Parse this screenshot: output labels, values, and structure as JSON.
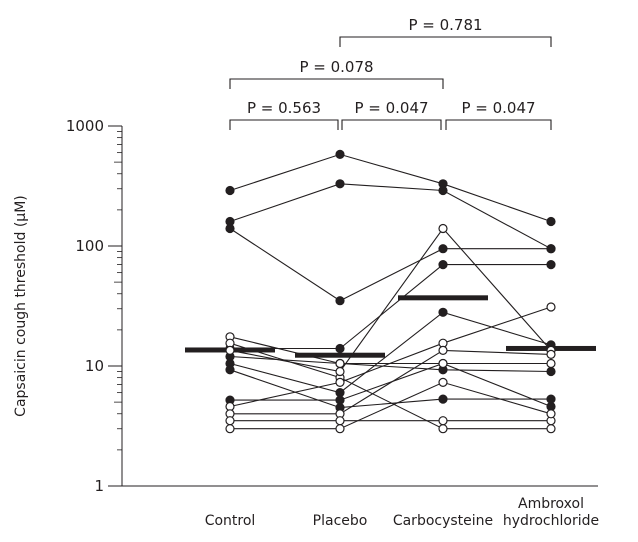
{
  "chart_data": {
    "type": "scatter",
    "title": "",
    "ylabel": "Capsaicin cough threshold (μM)",
    "xlabel": "",
    "yscale": "log",
    "ylim": [
      1,
      1000
    ],
    "yticks": [
      "1",
      "10",
      "100",
      "1000"
    ],
    "categories": [
      "Control",
      "Placebo",
      "Carbocysteine",
      "Ambroxol hydrochloride"
    ],
    "category_lines": [
      [
        "Control"
      ],
      [
        "Placebo"
      ],
      [
        "Carbocysteine"
      ],
      [
        "Ambroxol",
        "hydrochloride"
      ]
    ],
    "medians": [
      13.6,
      12.3,
      37,
      14
    ],
    "comparisons": [
      {
        "label": "P = 0.563",
        "from": "Control",
        "to": "Placebo"
      },
      {
        "label": "P = 0.047",
        "from": "Placebo",
        "to": "Carbocysteine"
      },
      {
        "label": "P = 0.047",
        "from": "Carbocysteine",
        "to": "Ambroxol hydrochloride"
      },
      {
        "label": "P = 0.078",
        "from": "Control",
        "to": "Carbocysteine"
      },
      {
        "label": "P = 0.781",
        "from": "Placebo",
        "to": "Ambroxol hydrochloride"
      }
    ],
    "closed_series": [
      {
        "values": [
          290,
          580,
          330,
          160
        ]
      },
      {
        "values": [
          160,
          330,
          290,
          95
        ]
      },
      {
        "values": [
          140,
          35,
          95,
          95
        ]
      },
      {
        "values": [
          14,
          14,
          70,
          70
        ]
      },
      {
        "values": [
          12,
          10.5,
          9.3,
          9
        ]
      },
      {
        "values": [
          10.5,
          6,
          28,
          15
        ]
      },
      {
        "values": [
          9.3,
          4.5,
          5.3,
          5.3
        ]
      },
      {
        "values": [
          5.2,
          5.2,
          10.5,
          4.6
        ]
      }
    ],
    "open_series": [
      {
        "values": [
          17.5,
          10.5,
          10.5,
          10.5
        ]
      },
      {
        "values": [
          15.5,
          8,
          3,
          3
        ]
      },
      {
        "values": [
          13.5,
          9,
          140,
          13.5
        ]
      },
      {
        "values": [
          4.6,
          7.3,
          15.5,
          31
        ]
      },
      {
        "values": [
          4,
          4,
          13.5,
          12.5
        ]
      },
      {
        "values": [
          3.5,
          3.5,
          3.5,
          3.5
        ]
      },
      {
        "values": [
          3,
          3,
          7.3,
          4
        ]
      }
    ]
  }
}
